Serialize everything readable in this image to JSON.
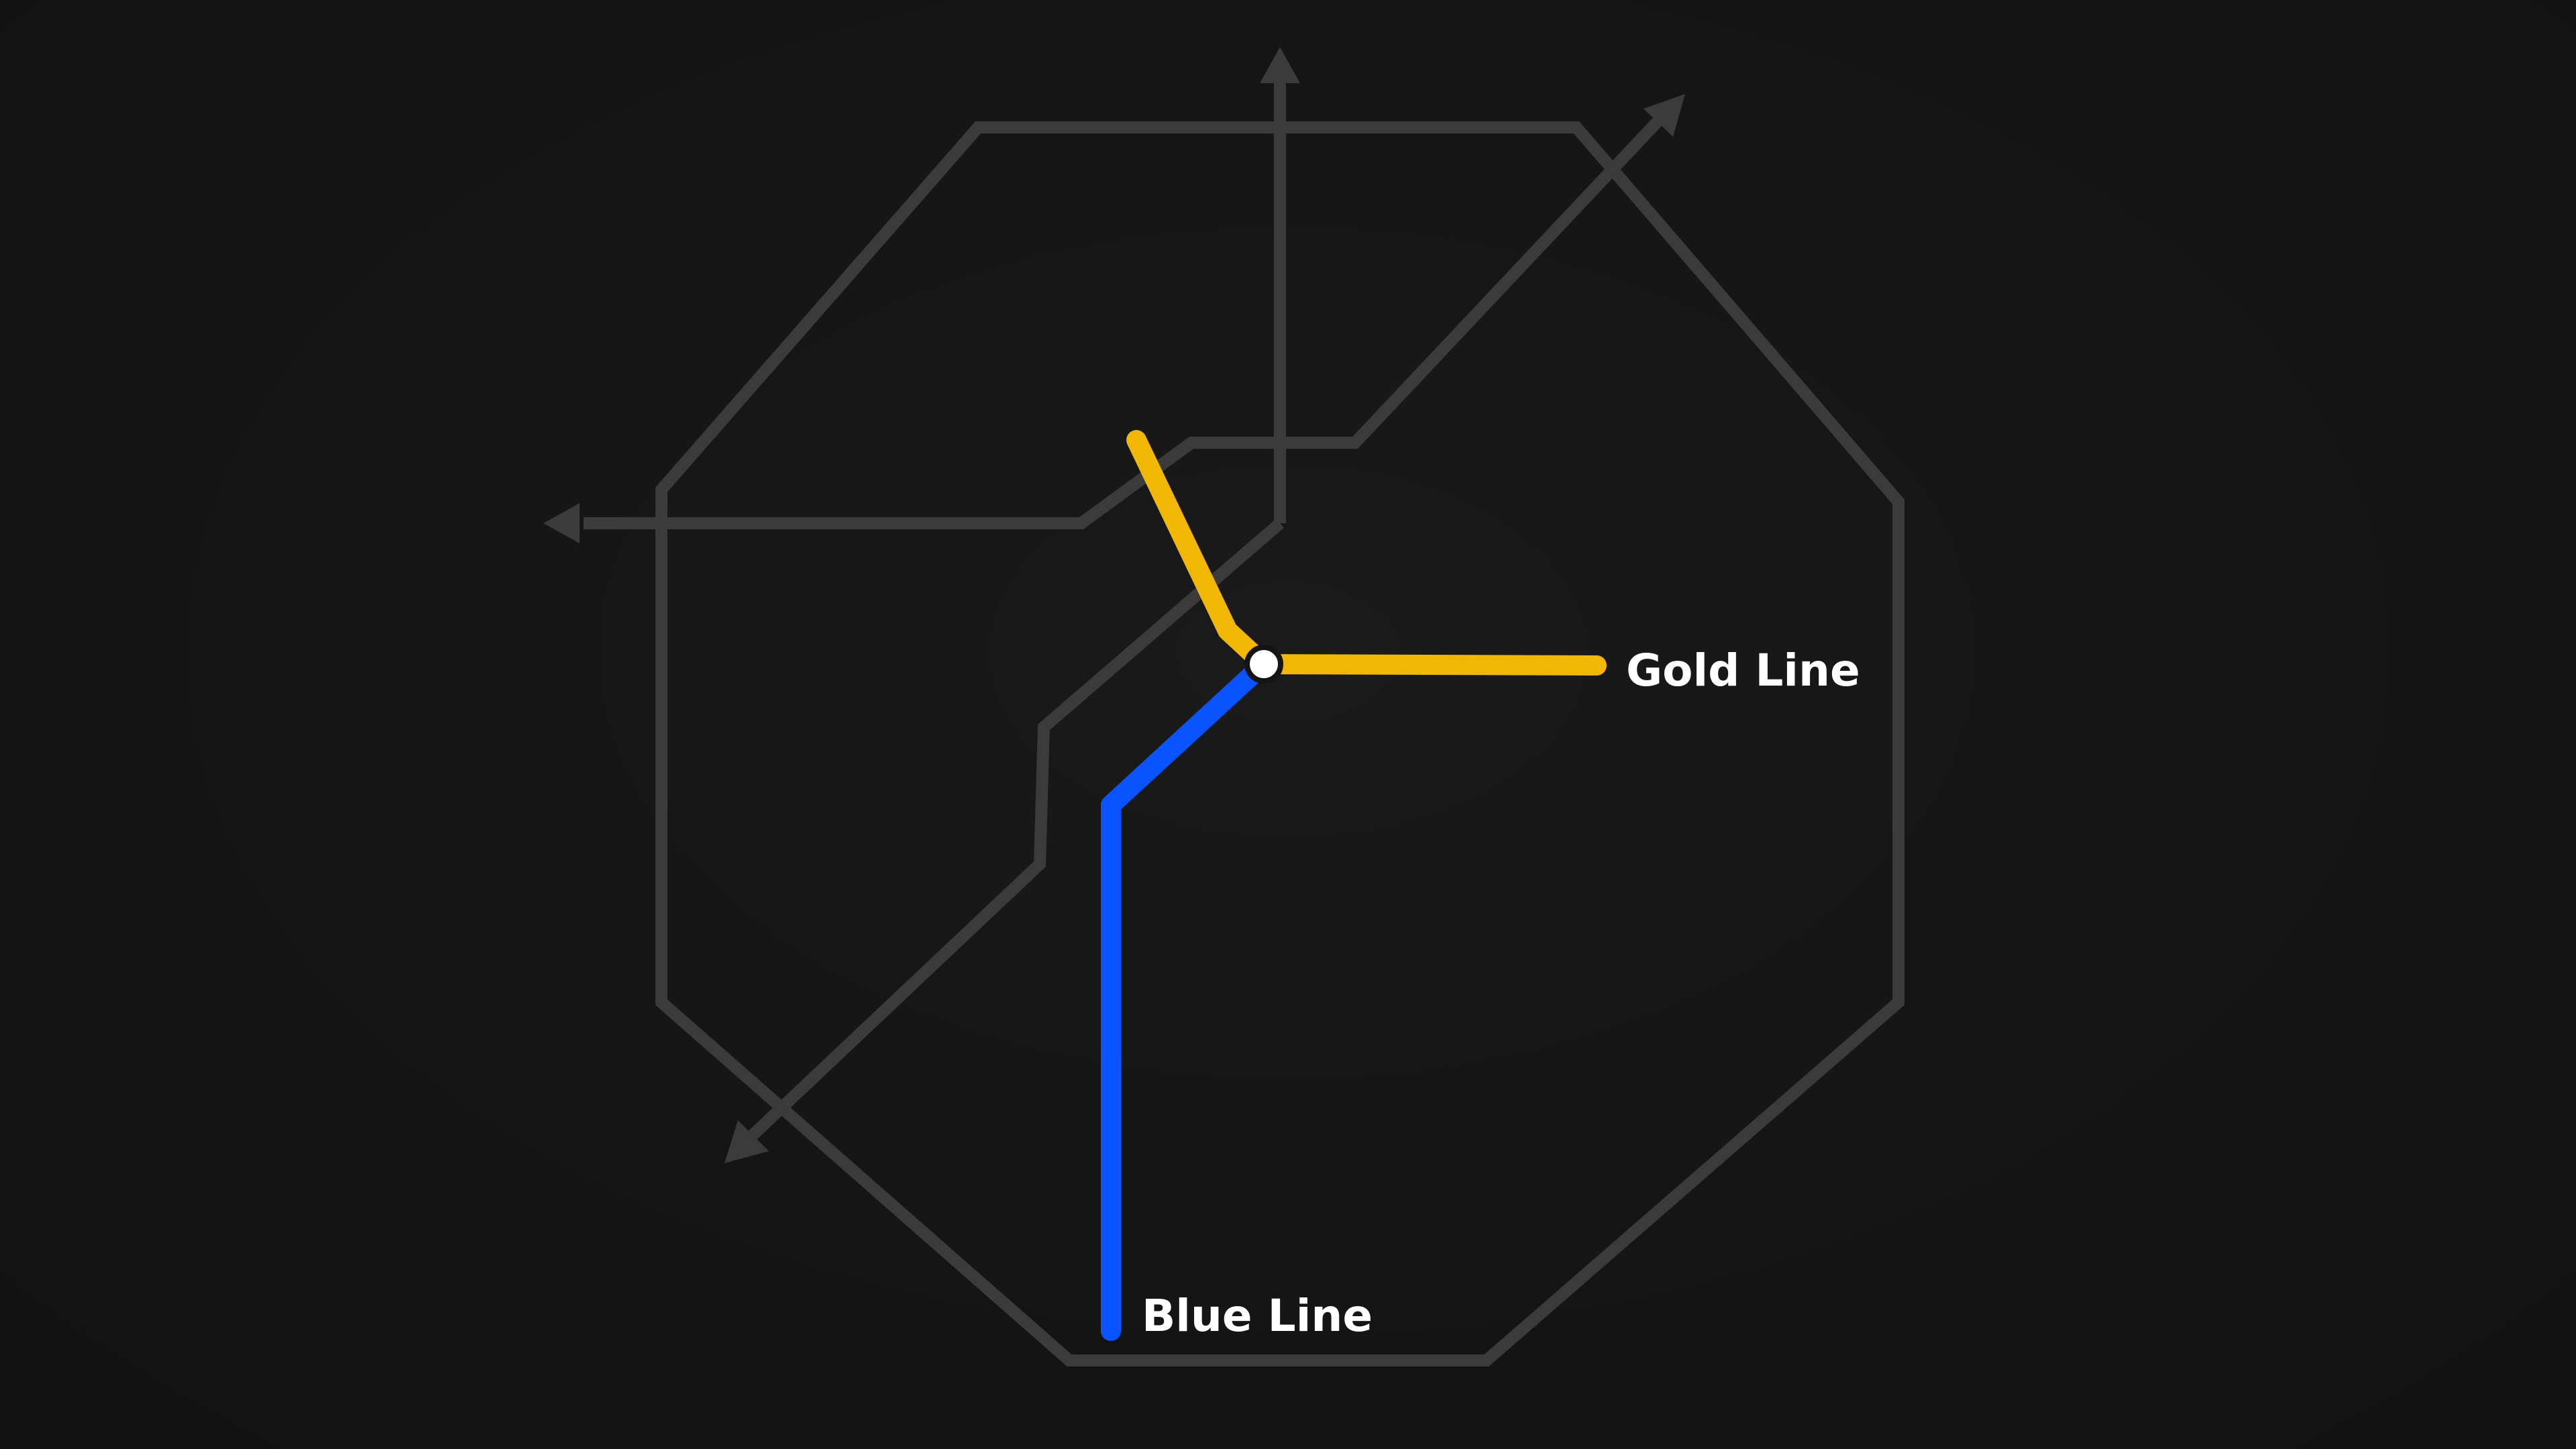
{
  "diagram": {
    "lines": [
      {
        "id": "gold",
        "label": "Gold Line",
        "color": "#F2B705"
      },
      {
        "id": "blue",
        "label": "Blue Line",
        "color": "#0A54FF"
      }
    ],
    "background_routes_color": "#3b3b3b",
    "station_color": "#ffffff",
    "background_color": "#141414"
  }
}
